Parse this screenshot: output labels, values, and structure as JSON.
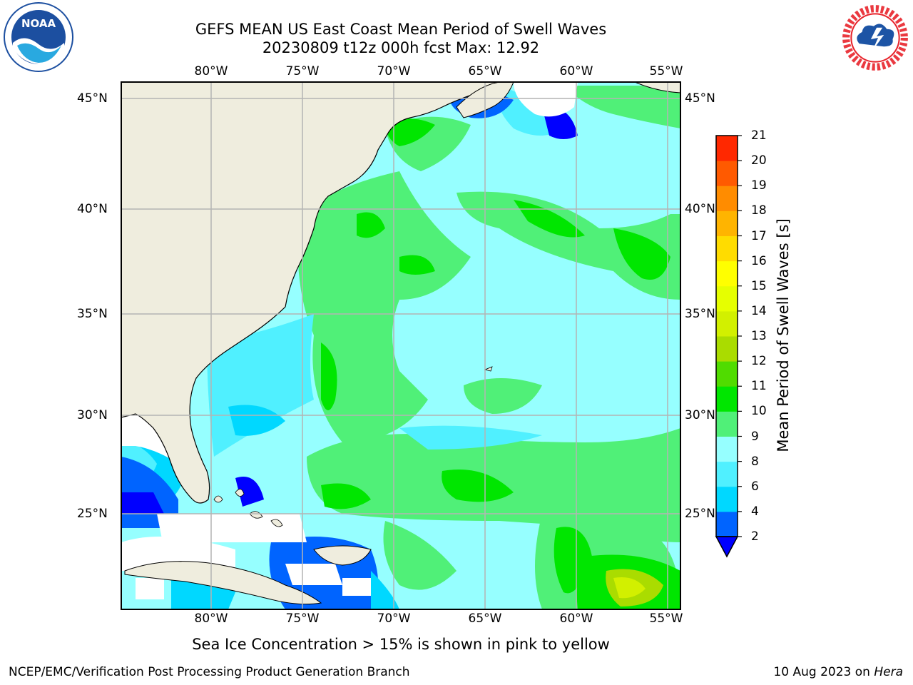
{
  "header": {
    "title_line1": "GEFS MEAN US East Coast Mean Period of Swell Waves",
    "title_line2": "20230809 t12z 000h fcst   Max: 12.92"
  },
  "logos": {
    "left": "NOAA",
    "right": "NATIONAL WEATHER SERVICE"
  },
  "map": {
    "lon_labels": [
      "80°W",
      "75°W",
      "70°W",
      "65°W",
      "60°W",
      "55°W"
    ],
    "lat_labels": [
      "45°N",
      "40°N",
      "35°N",
      "30°N",
      "25°N"
    ],
    "land_color": "#efedde",
    "no_data_color": "#ffffff",
    "grid_color": "#b4b4b4"
  },
  "colorbar": {
    "title": "Mean Period of Swell Waves [s]",
    "ticks": [
      "2",
      "4",
      "6",
      "8",
      "9",
      "10",
      "11",
      "12",
      "13",
      "14",
      "15",
      "16",
      "17",
      "18",
      "19",
      "20",
      "21"
    ],
    "colors": [
      "#0064ff",
      "#00d8ff",
      "#50f0ff",
      "#96ffff",
      "#50f078",
      "#00e600",
      "#50dc00",
      "#aadc00",
      "#d2f000",
      "#e6ff00",
      "#ffff00",
      "#ffdc00",
      "#ffb400",
      "#ff8c00",
      "#ff5a00",
      "#ff2800"
    ],
    "under_color": "#0000ff"
  },
  "caption": "Sea Ice Concentration > 15% is shown in pink to yellow",
  "footer": {
    "left": "NCEP/EMC/Verification Post Processing Product Generation Branch",
    "date": "10 Aug 2023 on ",
    "host": "Hera"
  }
}
